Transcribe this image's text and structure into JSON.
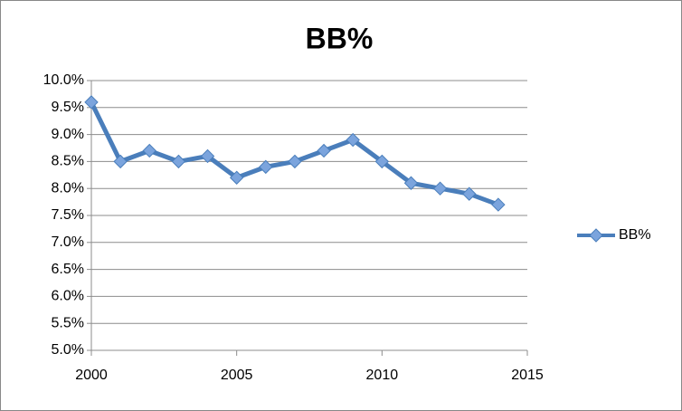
{
  "chart_data": {
    "type": "line",
    "title": "BB%",
    "x": [
      2000,
      2001,
      2002,
      2003,
      2004,
      2005,
      2006,
      2007,
      2008,
      2009,
      2010,
      2011,
      2012,
      2013,
      2014
    ],
    "series": [
      {
        "name": "BB%",
        "color": "#4a7ebb",
        "values": [
          9.6,
          8.5,
          8.7,
          8.5,
          8.6,
          8.2,
          8.4,
          8.5,
          8.7,
          8.9,
          8.5,
          8.1,
          8.0,
          7.9,
          7.7
        ]
      }
    ],
    "xlim": [
      2000,
      2015
    ],
    "xticks": [
      2000,
      2005,
      2010,
      2015
    ],
    "ylim": [
      5,
      10
    ],
    "yticks": [
      {
        "value": 5,
        "label": "5.0%"
      },
      {
        "value": 5.5,
        "label": "5.5%"
      },
      {
        "value": 6,
        "label": "6.0%"
      },
      {
        "value": 6.5,
        "label": "6.5%"
      },
      {
        "value": 7,
        "label": "7.0%"
      },
      {
        "value": 7.5,
        "label": "7.5%"
      },
      {
        "value": 8,
        "label": "8.0%"
      },
      {
        "value": 8.5,
        "label": "8.5%"
      },
      {
        "value": 9,
        "label": "9.0%"
      },
      {
        "value": 9.5,
        "label": "9.5%"
      },
      {
        "value": 10,
        "label": "10.0%"
      }
    ],
    "grid": true,
    "legend": "right"
  }
}
